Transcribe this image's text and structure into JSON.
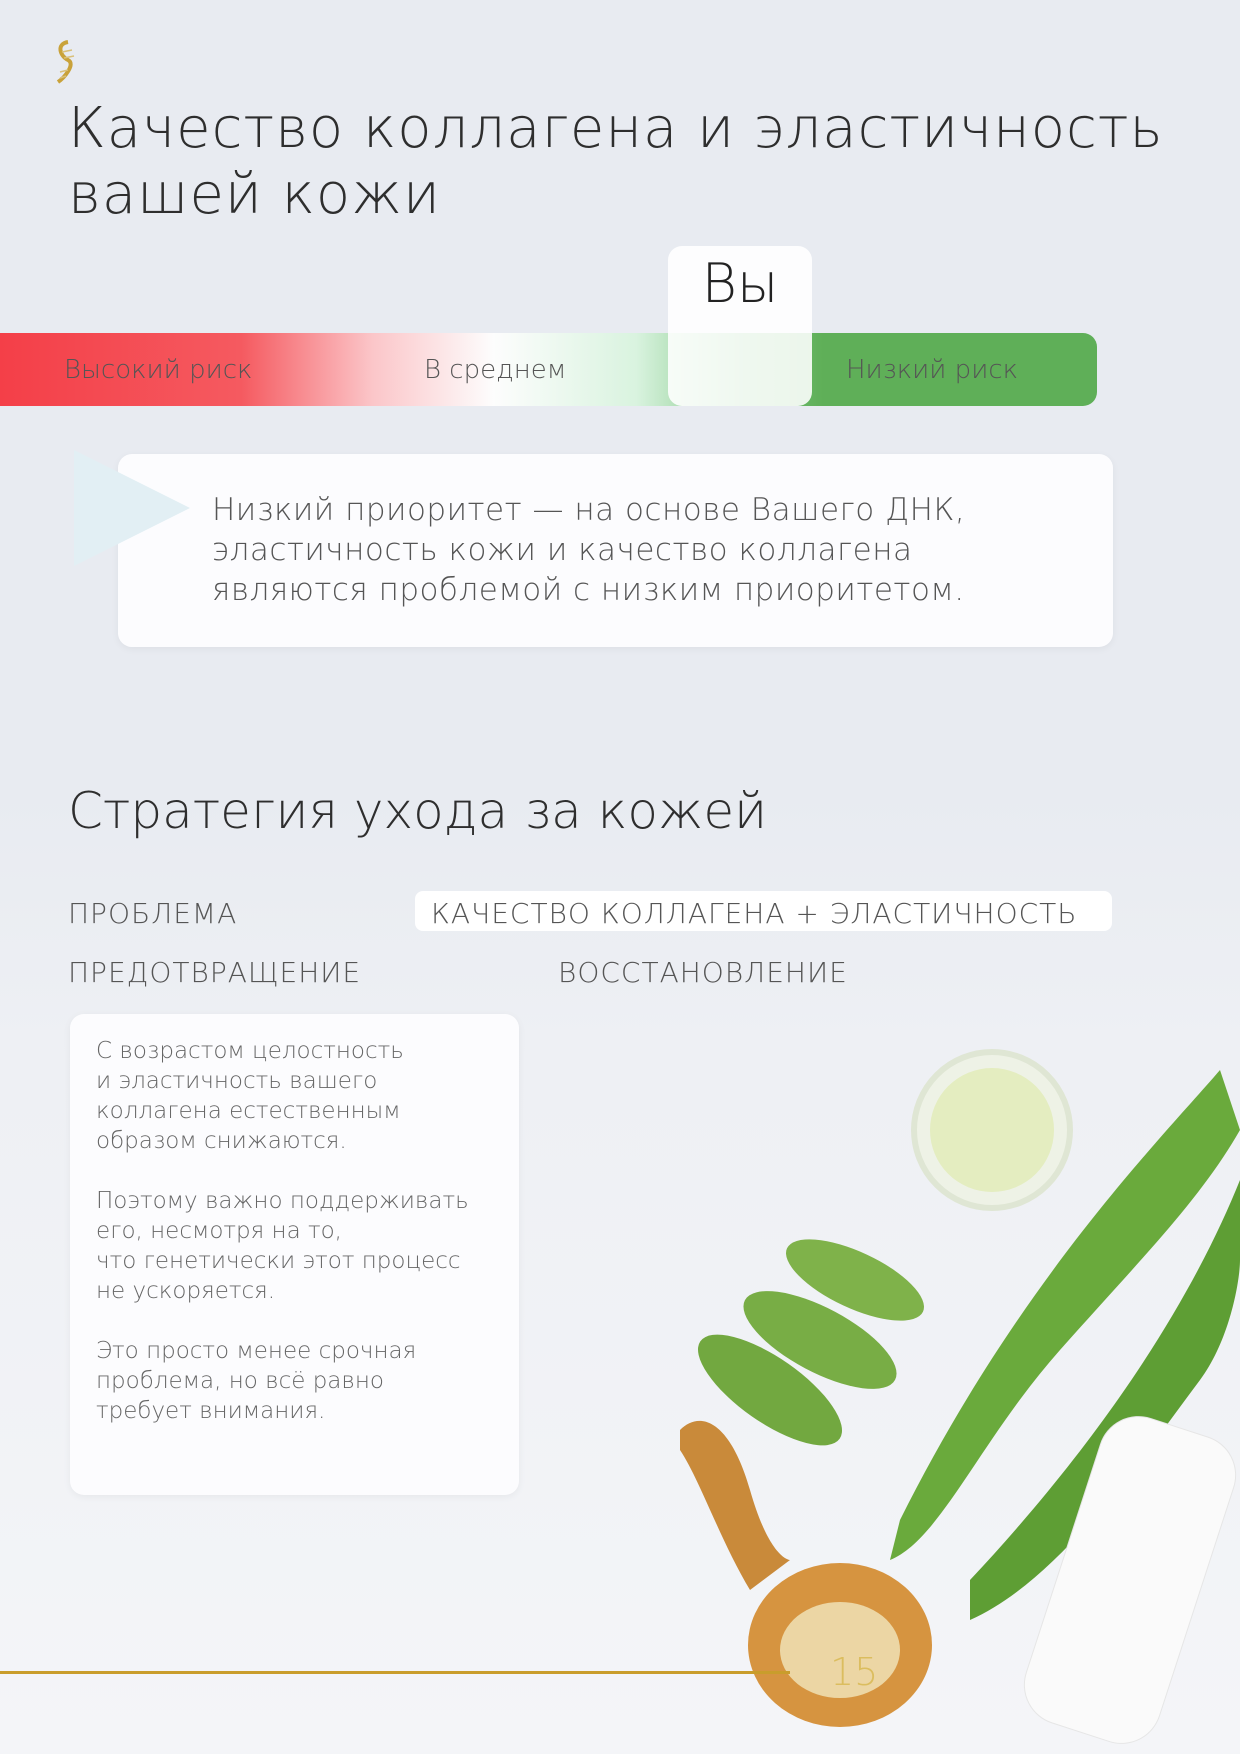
{
  "header": {
    "logo": "dna-helix-logo",
    "title_line1": "Качество коллагена и эластичность",
    "title_line2": "вашей кожи"
  },
  "risk_scale": {
    "high": "Высокий риск",
    "average": "В среднем",
    "low": "Низкий риск",
    "marker": "Вы",
    "position": "low-average",
    "colors": {
      "high": "#f43f48",
      "low": "#5faf58"
    }
  },
  "note": {
    "line1": "Низкий приоритет — на основе Вашего ДНК,",
    "line2": "эластичность кожи и качество коллагена",
    "line3": "являются проблемой с низким приоритетом."
  },
  "strategy": {
    "title": "Стратегия ухода за кожей",
    "problem_label": "ПРОБЛЕМА",
    "problem_value": "КАЧЕСТВО КОЛЛАГЕНА + ЭЛАСТИЧНОСТЬ",
    "prevention_label": "ПРЕДОТВРАЩЕНИЕ",
    "recovery_label": "ВОССТАНОВЛЕНИЕ",
    "paragraphs": [
      "С возрастом целостность\nи эластичность вашего\nколлагена естественным\nобразом снижаются.",
      "Поэтому важно поддерживать\nего, несмотря на то,\nчто генетически этот процесс\nне ускоряется.",
      "Это просто менее срочная\nпроблема, но всё равно\nтребует внимания."
    ]
  },
  "footer": {
    "page_number": "15",
    "accent": "#c99d2c"
  }
}
